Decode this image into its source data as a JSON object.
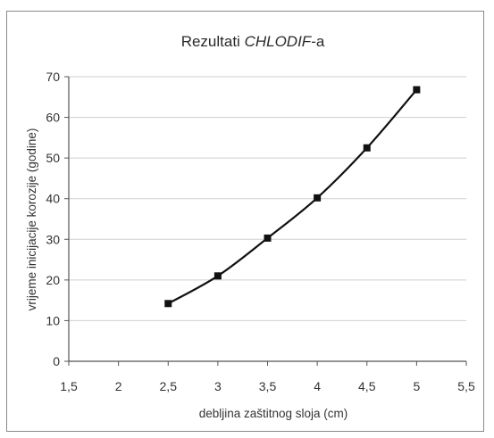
{
  "chart_data": {
    "type": "line",
    "title_plain": "Rezultati ",
    "title_italic": "CHLODIF",
    "title_suffix": "-a",
    "xlabel": "debljina zaštitnog sloja (cm)",
    "ylabel": "vrijeme inicijacije korozije (godine)",
    "xlim": [
      1.5,
      5.5
    ],
    "ylim": [
      0,
      70
    ],
    "xticks": [
      "1,5",
      "2",
      "2,5",
      "3",
      "3,5",
      "4",
      "4,5",
      "5",
      "5,5"
    ],
    "yticks": [
      "0",
      "10",
      "20",
      "30",
      "40",
      "50",
      "60",
      "70"
    ],
    "grid": true,
    "series": [
      {
        "x": [
          2.5,
          3.0,
          3.5,
          4.0,
          4.5,
          5.0
        ],
        "y": [
          14.2,
          21.0,
          30.3,
          40.2,
          52.5,
          66.8
        ]
      }
    ],
    "line_color": "#111111",
    "grid_color": "#cfcfcf"
  }
}
